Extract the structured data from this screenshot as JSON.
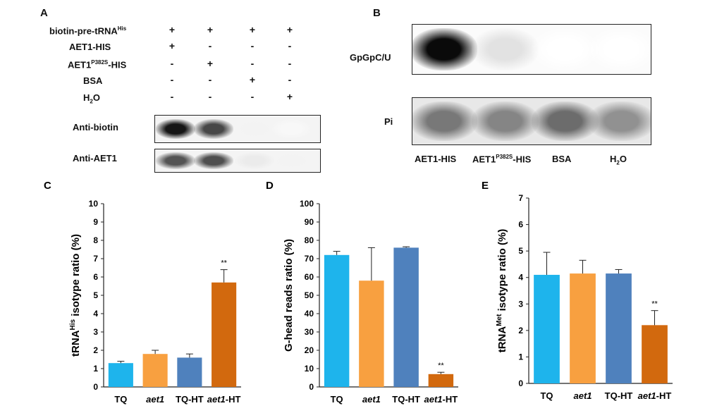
{
  "panelA": {
    "letter": "A",
    "rows": [
      {
        "label": "biotin-pre-tRNA",
        "sup": "His",
        "sub": "",
        "label_tail": "",
        "signs": [
          "+",
          "+",
          "+",
          "+"
        ]
      },
      {
        "label": "AET1-HIS",
        "sup": "",
        "sub": "",
        "label_tail": "",
        "signs": [
          "+",
          "-",
          "-",
          "-"
        ]
      },
      {
        "label": "AET1",
        "sup": "P382S",
        "sub": "",
        "label_tail": "-HIS",
        "signs": [
          "-",
          "+",
          "-",
          "-"
        ]
      },
      {
        "label": "BSA",
        "sup": "",
        "sub": "",
        "label_tail": "",
        "signs": [
          "-",
          "-",
          "+",
          "-"
        ]
      },
      {
        "label": "H",
        "sup": "",
        "sub": "2",
        "label_tail": "O",
        "signs": [
          "-",
          "-",
          "-",
          "+"
        ]
      }
    ],
    "blots": [
      {
        "label": "Anti-biotin",
        "band_intensity": [
          0.95,
          0.75,
          0.05,
          0.03
        ]
      },
      {
        "label": "Anti-AET1",
        "band_intensity": [
          0.7,
          0.72,
          0.08,
          0.05
        ]
      }
    ]
  },
  "panelB": {
    "letter": "B",
    "blots": [
      {
        "label": "GpGpC/U",
        "band_intensity": [
          1.0,
          0.12,
          0.0,
          0.0
        ]
      },
      {
        "label": "Pi",
        "band_intensity": [
          0.55,
          0.5,
          0.6,
          0.45
        ]
      }
    ],
    "lanes": [
      {
        "label": "AET1-HIS",
        "sup": "",
        "sub": "",
        "tail": ""
      },
      {
        "label": "AET1",
        "sup": "P382S",
        "sub": "",
        "tail": "-HIS"
      },
      {
        "label": "BSA",
        "sup": "",
        "sub": "",
        "tail": ""
      },
      {
        "label": "H",
        "sup": "",
        "sub": "2",
        "tail": "O"
      }
    ]
  },
  "chart_data": [
    {
      "panel": "C",
      "type": "bar",
      "categories": [
        "TQ",
        "aet1",
        "TQ-HT",
        "aet1-HT"
      ],
      "category_italic_part": [
        "",
        "aet1",
        "",
        "aet1"
      ],
      "values": [
        1.3,
        1.8,
        1.6,
        5.7
      ],
      "errors": [
        0.1,
        0.2,
        0.2,
        0.7
      ],
      "significance": [
        "",
        "",
        "",
        "**"
      ],
      "ylabel_pre": "tRNA",
      "ylabel_sup": "His",
      "ylabel_post": " isotype ratio (%)",
      "ylim": [
        0,
        10
      ],
      "yticks": [
        "0",
        "1",
        "2",
        "3",
        "4",
        "5",
        "6",
        "7",
        "8",
        "9",
        "10"
      ],
      "colors": [
        "#1eb4ec",
        "#f8a040",
        "#4f81bd",
        "#d2690e"
      ]
    },
    {
      "panel": "D",
      "type": "bar",
      "categories": [
        "TQ",
        "aet1",
        "TQ-HT",
        "aet1-HT"
      ],
      "category_italic_part": [
        "",
        "aet1",
        "",
        "aet1"
      ],
      "values": [
        72,
        58,
        76,
        7
      ],
      "errors": [
        2,
        18,
        0.5,
        1
      ],
      "significance": [
        "",
        "",
        "",
        "**"
      ],
      "ylabel_pre": "G-head reads ratio (%)",
      "ylabel_sup": "",
      "ylabel_post": "",
      "ylim": [
        0,
        100
      ],
      "yticks": [
        "0",
        "10",
        "20",
        "30",
        "40",
        "50",
        "60",
        "70",
        "80",
        "90",
        "100"
      ],
      "colors": [
        "#1eb4ec",
        "#f8a040",
        "#4f81bd",
        "#d2690e"
      ]
    },
    {
      "panel": "E",
      "type": "bar",
      "categories": [
        "TQ",
        "aet1",
        "TQ-HT",
        "aet1-HT"
      ],
      "category_italic_part": [
        "",
        "aet1",
        "",
        "aet1"
      ],
      "values": [
        4.1,
        4.15,
        4.15,
        2.2
      ],
      "errors": [
        0.85,
        0.5,
        0.15,
        0.55
      ],
      "significance": [
        "",
        "",
        "",
        "**"
      ],
      "ylabel_pre": "tRNA",
      "ylabel_sup": "Met",
      "ylabel_post": " isotype ratio (%)",
      "ylim": [
        0,
        7
      ],
      "yticks": [
        "0",
        "1",
        "2",
        "3",
        "4",
        "5",
        "6",
        "7"
      ],
      "colors": [
        "#1eb4ec",
        "#f8a040",
        "#4f81bd",
        "#d2690e"
      ]
    }
  ]
}
